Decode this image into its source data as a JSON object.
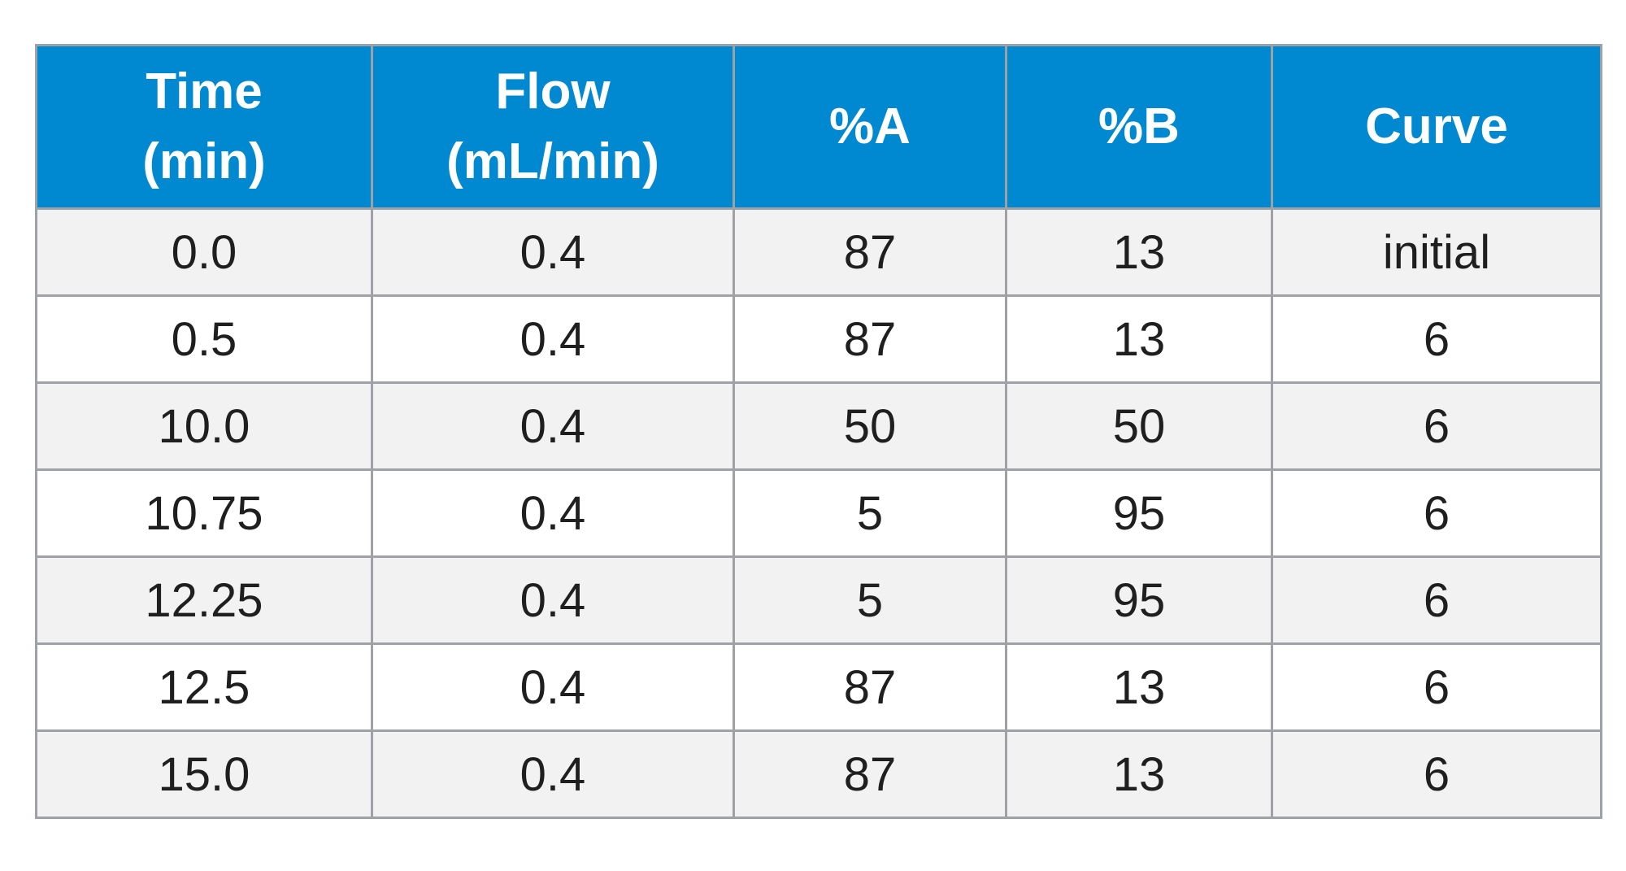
{
  "table": {
    "headers": [
      [
        "Time",
        "(min)"
      ],
      [
        "Flow",
        "(mL/min)"
      ],
      [
        "%A"
      ],
      [
        "%B"
      ],
      [
        "Curve"
      ]
    ],
    "rows": [
      [
        "0.0",
        "0.4",
        "87",
        "13",
        "initial"
      ],
      [
        "0.5",
        "0.4",
        "87",
        "13",
        "6"
      ],
      [
        "10.0",
        "0.4",
        "50",
        "50",
        "6"
      ],
      [
        "10.75",
        "0.4",
        "5",
        "95",
        "6"
      ],
      [
        "12.25",
        "0.4",
        "5",
        "95",
        "6"
      ],
      [
        "12.5",
        "0.4",
        "87",
        "13",
        "6"
      ],
      [
        "15.0",
        "0.4",
        "87",
        "13",
        "6"
      ]
    ]
  },
  "colors": {
    "header_bg": "#0088d0",
    "header_text": "#ffffff",
    "row_alt_bg": "#f2f2f3",
    "row_bg": "#ffffff",
    "border": "#9ea2a6"
  }
}
